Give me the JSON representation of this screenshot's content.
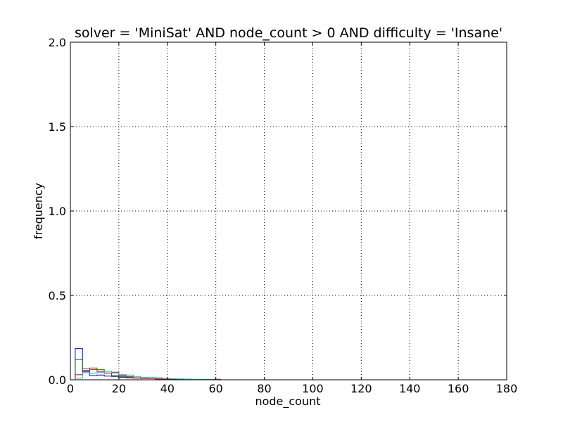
{
  "chart_data": {
    "type": "histogram-step",
    "title": "solver = 'MiniSat' AND node_count > 0 AND difficulty = 'Insane'",
    "xlabel": "node_count",
    "ylabel": "frequency",
    "xlim": [
      0,
      180
    ],
    "ylim": [
      0,
      2
    ],
    "xticks": [
      "0",
      "20",
      "40",
      "60",
      "80",
      "100",
      "120",
      "140",
      "160",
      "180"
    ],
    "yticks": [
      "0.0",
      "0.5",
      "1.0",
      "1.5",
      "2.0"
    ],
    "grid": true,
    "bin_width": 3,
    "series": [
      {
        "color": "#0000ff",
        "values": [
          0.185,
          0.05,
          0.025,
          0.028,
          0.022,
          0.02,
          0.015,
          0.012,
          0.01,
          0.008,
          0.006,
          0.005,
          0.004,
          0.003,
          0.002,
          0.002,
          0.001,
          0.001,
          0.001,
          0.001
        ]
      },
      {
        "color": "#008000",
        "values": [
          0.12,
          0.065,
          0.07,
          0.06,
          0.04,
          0.025,
          0.02,
          0.015,
          0.01,
          0.008,
          0.006,
          0.005,
          0.004,
          0.003,
          0.002,
          0.002,
          0.001,
          0.001,
          0.001,
          0.001
        ]
      },
      {
        "color": "#ff0000",
        "values": [
          0.03,
          0.055,
          0.06,
          0.05,
          0.04,
          0.045,
          0.025,
          0.018,
          0.012,
          0.008,
          0.006,
          0.005,
          0.004,
          0.003,
          0.002,
          0.002,
          0.001,
          0.001,
          0.001,
          0.003
        ]
      },
      {
        "color": "#00bfbf",
        "values": [
          0.01,
          0.045,
          0.04,
          0.045,
          0.05,
          0.04,
          0.03,
          0.028,
          0.02,
          0.015,
          0.015,
          0.012,
          0.008,
          0.006,
          0.005,
          0.004,
          0.003,
          0.002,
          0.002,
          0.001
        ]
      }
    ]
  }
}
